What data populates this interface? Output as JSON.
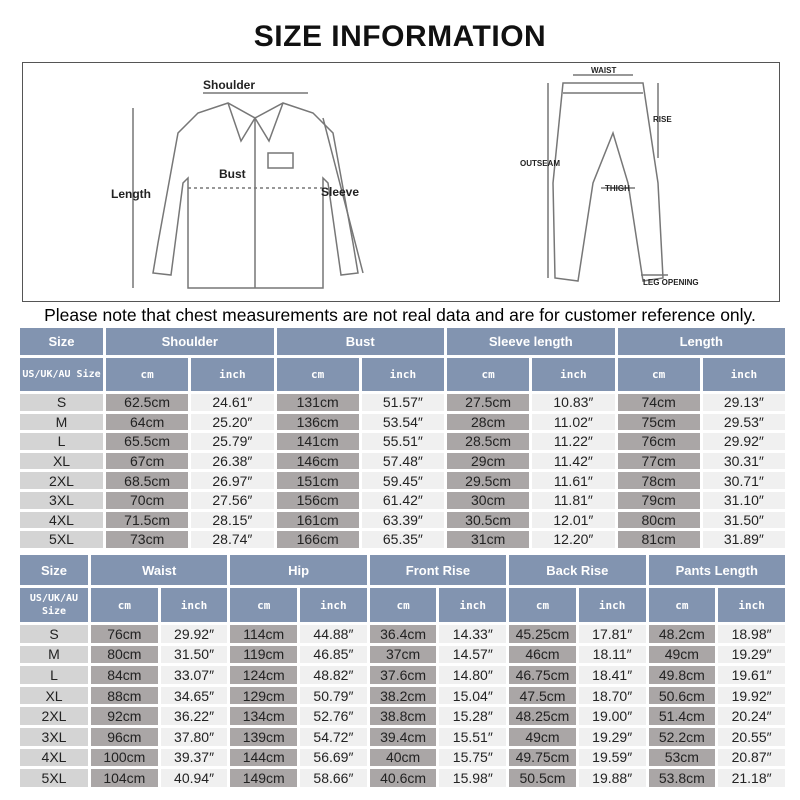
{
  "title": "SIZE INFORMATION",
  "diagram": {
    "shirt_labels": {
      "shoulder": "Shoulder",
      "bust": "Bust",
      "length": "Length",
      "sleeve": "Sleeve"
    },
    "pants_labels": {
      "waist": "WAIST",
      "rise": "RISE",
      "outseam": "OUTSEAM",
      "thigh": "THIGH",
      "leg_opening": "LEG OPENING"
    }
  },
  "note": "Please note that chest measurements are not real data and are for customer reference only.",
  "colors": {
    "header": "#8294b0",
    "size_cell": "#d4d4d4",
    "cm_cell": "#aaa6a6",
    "inch_cell": "#f0f0f0"
  },
  "tables": [
    {
      "size_header": "Size",
      "size_sub": "US/UK/AU Size",
      "unit_cm": "cm",
      "unit_inch": "inch",
      "groups": [
        "Shoulder",
        "Bust",
        "Sleeve length",
        "Length"
      ],
      "rows": [
        [
          "S",
          "62.5cm",
          "24.61″",
          "131cm",
          "51.57″",
          "27.5cm",
          "10.83″",
          "74cm",
          "29.13″"
        ],
        [
          "M",
          "64cm",
          "25.20″",
          "136cm",
          "53.54″",
          "28cm",
          "11.02″",
          "75cm",
          "29.53″"
        ],
        [
          "L",
          "65.5cm",
          "25.79″",
          "141cm",
          "55.51″",
          "28.5cm",
          "11.22″",
          "76cm",
          "29.92″"
        ],
        [
          "XL",
          "67cm",
          "26.38″",
          "146cm",
          "57.48″",
          "29cm",
          "11.42″",
          "77cm",
          "30.31″"
        ],
        [
          "2XL",
          "68.5cm",
          "26.97″",
          "151cm",
          "59.45″",
          "29.5cm",
          "11.61″",
          "78cm",
          "30.71″"
        ],
        [
          "3XL",
          "70cm",
          "27.56″",
          "156cm",
          "61.42″",
          "30cm",
          "11.81″",
          "79cm",
          "31.10″"
        ],
        [
          "4XL",
          "71.5cm",
          "28.15″",
          "161cm",
          "63.39″",
          "30.5cm",
          "12.01″",
          "80cm",
          "31.50″"
        ],
        [
          "5XL",
          "73cm",
          "28.74″",
          "166cm",
          "65.35″",
          "31cm",
          "12.20″",
          "81cm",
          "31.89″"
        ]
      ]
    },
    {
      "size_header": "Size",
      "size_sub": "US/UK/AU Size",
      "unit_cm": "cm",
      "unit_inch": "inch",
      "groups": [
        "Waist",
        "Hip",
        "Front Rise",
        "Back Rise",
        "Pants Length"
      ],
      "rows": [
        [
          "S",
          "76cm",
          "29.92″",
          "114cm",
          "44.88″",
          "36.4cm",
          "14.33″",
          "45.25cm",
          "17.81″",
          "48.2cm",
          "18.98″"
        ],
        [
          "M",
          "80cm",
          "31.50″",
          "119cm",
          "46.85″",
          "37cm",
          "14.57″",
          "46cm",
          "18.11″",
          "49cm",
          "19.29″"
        ],
        [
          "L",
          "84cm",
          "33.07″",
          "124cm",
          "48.82″",
          "37.6cm",
          "14.80″",
          "46.75cm",
          "18.41″",
          "49.8cm",
          "19.61″"
        ],
        [
          "XL",
          "88cm",
          "34.65″",
          "129cm",
          "50.79″",
          "38.2cm",
          "15.04″",
          "47.5cm",
          "18.70″",
          "50.6cm",
          "19.92″"
        ],
        [
          "2XL",
          "92cm",
          "36.22″",
          "134cm",
          "52.76″",
          "38.8cm",
          "15.28″",
          "48.25cm",
          "19.00″",
          "51.4cm",
          "20.24″"
        ],
        [
          "3XL",
          "96cm",
          "37.80″",
          "139cm",
          "54.72″",
          "39.4cm",
          "15.51″",
          "49cm",
          "19.29″",
          "52.2cm",
          "20.55″"
        ],
        [
          "4XL",
          "100cm",
          "39.37″",
          "144cm",
          "56.69″",
          "40cm",
          "15.75″",
          "49.75cm",
          "19.59″",
          "53cm",
          "20.87″"
        ],
        [
          "5XL",
          "104cm",
          "40.94″",
          "149cm",
          "58.66″",
          "40.6cm",
          "15.98″",
          "50.5cm",
          "19.88″",
          "53.8cm",
          "21.18″"
        ]
      ]
    }
  ]
}
